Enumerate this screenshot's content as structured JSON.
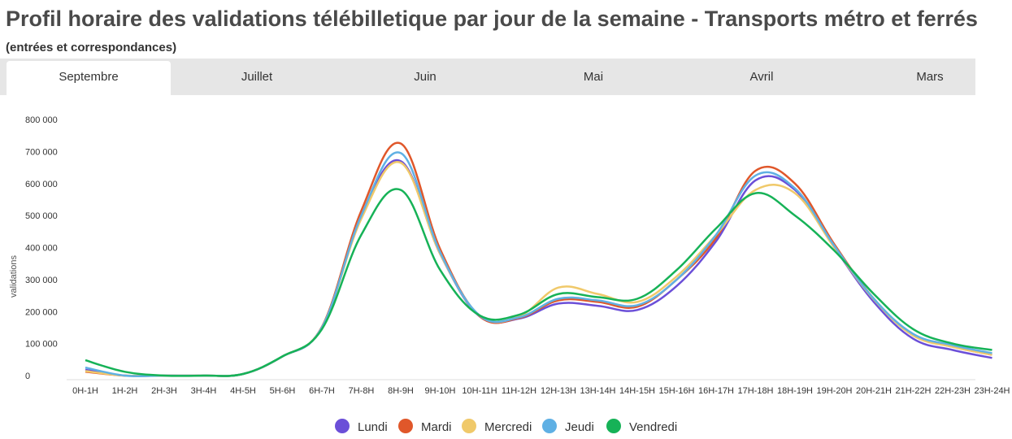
{
  "title": "Profil horaire des validations télébilletique par jour de la semaine - Transports métro et ferrés",
  "subtitle": "(entrées et correspondances)",
  "tabs": [
    {
      "label": "Septembre",
      "active": true
    },
    {
      "label": "Juillet",
      "active": false
    },
    {
      "label": "Juin",
      "active": false
    },
    {
      "label": "Mai",
      "active": false
    },
    {
      "label": "Avril",
      "active": false
    },
    {
      "label": "Mars",
      "active": false
    }
  ],
  "colors": {
    "Lundi": "#6b4fd8",
    "Mardi": "#e0572a",
    "Mercredi": "#f0c96a",
    "Jeudi": "#5fb0e4",
    "Vendredi": "#16b257"
  },
  "chart_data": {
    "type": "line",
    "ylabel": "validations",
    "xlabel": "",
    "ylim": [
      0,
      800000
    ],
    "yticks": [
      0,
      100000,
      200000,
      300000,
      400000,
      500000,
      600000,
      700000,
      800000
    ],
    "ytick_labels": [
      "0",
      "100 000",
      "200 000",
      "300 000",
      "400 000",
      "500 000",
      "600 000",
      "700 000",
      "800 000"
    ],
    "grid": false,
    "legend_position": "bottom",
    "categories": [
      "0H-1H",
      "1H-2H",
      "2H-3H",
      "3H-4H",
      "4H-5H",
      "5H-6H",
      "6H-7H",
      "7H-8H",
      "8H-9H",
      "9H-10H",
      "10H-11H",
      "11H-12H",
      "12H-13H",
      "13H-14H",
      "14H-15H",
      "15H-16H",
      "16H-17H",
      "17H-18H",
      "18H-19H",
      "19H-20H",
      "20H-21H",
      "21H-22H",
      "22H-23H",
      "23H-24H"
    ],
    "series": [
      {
        "name": "Lundi",
        "values": [
          18000,
          0,
          0,
          0,
          5000,
          60000,
          150000,
          500000,
          670000,
          380000,
          185000,
          178000,
          225000,
          218000,
          205000,
          280000,
          420000,
          610000,
          580000,
          400000,
          230000,
          115000,
          80000,
          55000
        ]
      },
      {
        "name": "Mardi",
        "values": [
          12000,
          0,
          0,
          0,
          5000,
          60000,
          152000,
          515000,
          725000,
          395000,
          186000,
          180000,
          235000,
          230000,
          215000,
          300000,
          430000,
          640000,
          600000,
          410000,
          240000,
          128000,
          90000,
          65000
        ]
      },
      {
        "name": "Mercredi",
        "values": [
          14000,
          0,
          0,
          0,
          5000,
          60000,
          150000,
          490000,
          665000,
          380000,
          188000,
          185000,
          275000,
          255000,
          230000,
          310000,
          440000,
          580000,
          570000,
          400000,
          238000,
          125000,
          90000,
          65000
        ]
      },
      {
        "name": "Jeudi",
        "values": [
          25000,
          0,
          0,
          0,
          5000,
          60000,
          150000,
          500000,
          695000,
          385000,
          188000,
          182000,
          240000,
          235000,
          220000,
          300000,
          440000,
          625000,
          585000,
          405000,
          240000,
          130000,
          95000,
          70000
        ]
      },
      {
        "name": "Vendredi",
        "values": [
          48000,
          12000,
          0,
          0,
          5000,
          60000,
          145000,
          440000,
          580000,
          330000,
          188000,
          190000,
          255000,
          245000,
          240000,
          330000,
          460000,
          570000,
          500000,
          390000,
          255000,
          145000,
          100000,
          80000
        ]
      }
    ]
  }
}
